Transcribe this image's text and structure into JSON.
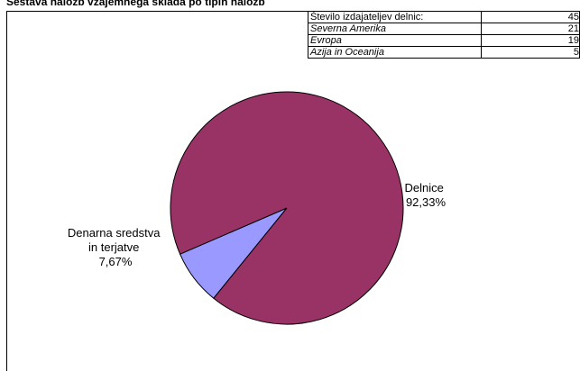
{
  "page": {
    "title": "Sestava naložb vzajemnega sklada po tipih naložb"
  },
  "info_table": {
    "rows": [
      {
        "label": "Število izdajateljev delnic:",
        "value": "45",
        "italic": false
      },
      {
        "label": "Severna Amerika",
        "value": "21",
        "italic": true
      },
      {
        "label": "Evropa",
        "value": "19",
        "italic": true
      },
      {
        "label": "Azija in Oceanija",
        "value": "5",
        "italic": true
      }
    ]
  },
  "chart_data": {
    "type": "pie",
    "title": "",
    "slices": [
      {
        "label": "Delnice",
        "value": 92.33,
        "display": "92,33%",
        "color": "#993366"
      },
      {
        "label": "Denarna sredstva in terjatve",
        "value": 7.67,
        "display": "7,67%",
        "color": "#9999FF"
      }
    ],
    "label_lines": {
      "delnice": [
        "Delnice",
        "92,33%"
      ],
      "denarna": [
        "Denarna sredstva",
        "in terjatve",
        "7,67%"
      ]
    }
  }
}
